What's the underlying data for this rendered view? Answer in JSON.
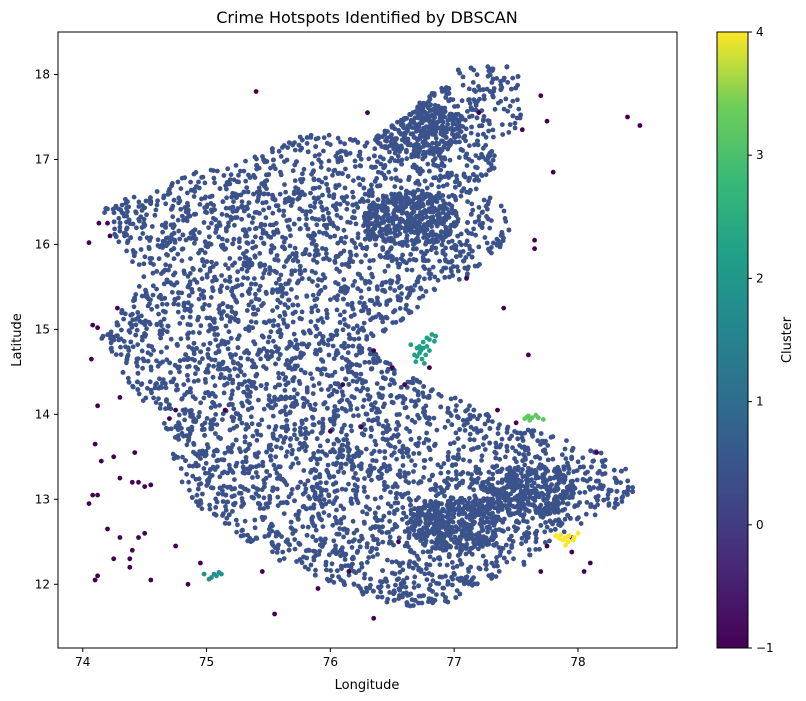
{
  "chart_data": {
    "type": "scatter",
    "title": "Crime Hotspots Identified by DBSCAN",
    "xlabel": "Longitude",
    "ylabel": "Latitude",
    "xlim": [
      73.8,
      78.8
    ],
    "ylim": [
      11.25,
      18.5
    ],
    "xticks": [
      74,
      75,
      76,
      77,
      78
    ],
    "yticks": [
      12,
      13,
      14,
      15,
      16,
      17,
      18
    ],
    "grid": false,
    "colorbar": {
      "label": "Cluster",
      "range": [
        -1,
        4
      ],
      "ticks": [
        -1,
        0,
        1,
        2,
        3,
        4
      ],
      "colormap": "viridis"
    },
    "clusters": [
      {
        "cluster": 0,
        "color": "#3b528b",
        "region_outline": [
          [
            74.2,
            16.5
          ],
          [
            74.55,
            16.6
          ],
          [
            74.9,
            16.85
          ],
          [
            75.2,
            16.95
          ],
          [
            75.6,
            17.2
          ],
          [
            75.95,
            17.35
          ],
          [
            76.3,
            17.2
          ],
          [
            76.6,
            17.5
          ],
          [
            76.85,
            17.85
          ],
          [
            77.1,
            18.15
          ],
          [
            77.45,
            18.1
          ],
          [
            77.6,
            17.85
          ],
          [
            77.55,
            17.4
          ],
          [
            77.3,
            17.2
          ],
          [
            77.4,
            16.95
          ],
          [
            77.2,
            16.7
          ],
          [
            77.5,
            16.3
          ],
          [
            77.35,
            15.9
          ],
          [
            77.1,
            15.6
          ],
          [
            76.9,
            15.5
          ],
          [
            76.5,
            15.0
          ],
          [
            76.25,
            14.85
          ],
          [
            76.6,
            14.5
          ],
          [
            77.0,
            14.2
          ],
          [
            77.4,
            13.9
          ],
          [
            77.8,
            13.75
          ],
          [
            78.2,
            13.55
          ],
          [
            78.45,
            13.3
          ],
          [
            78.5,
            13.05
          ],
          [
            78.1,
            12.75
          ],
          [
            77.8,
            12.55
          ],
          [
            77.55,
            12.2
          ],
          [
            77.2,
            12.0
          ],
          [
            77.0,
            11.8
          ],
          [
            76.6,
            11.7
          ],
          [
            76.2,
            11.9
          ],
          [
            75.8,
            12.15
          ],
          [
            75.4,
            12.4
          ],
          [
            75.1,
            12.75
          ],
          [
            74.85,
            13.0
          ],
          [
            74.75,
            13.4
          ],
          [
            74.65,
            13.9
          ],
          [
            74.4,
            14.3
          ],
          [
            74.25,
            14.65
          ],
          [
            74.15,
            14.9
          ],
          [
            74.35,
            15.3
          ],
          [
            74.5,
            15.6
          ],
          [
            74.3,
            16.0
          ],
          [
            74.15,
            16.3
          ]
        ],
        "dense_centers": [
          [
            77.6,
            13.1
          ],
          [
            76.7,
            17.35
          ],
          [
            76.65,
            16.3
          ],
          [
            77.0,
            12.7
          ]
        ]
      },
      {
        "cluster": -1,
        "color": "#440154",
        "points": [
          [
            74.05,
            16.02
          ],
          [
            74.13,
            16.25
          ],
          [
            74.2,
            16.25
          ],
          [
            74.22,
            16.1
          ],
          [
            74.28,
            15.25
          ],
          [
            74.08,
            15.05
          ],
          [
            74.12,
            15.02
          ],
          [
            74.07,
            14.65
          ],
          [
            74.12,
            14.1
          ],
          [
            74.3,
            14.2
          ],
          [
            74.25,
            13.5
          ],
          [
            74.1,
            13.65
          ],
          [
            74.15,
            13.45
          ],
          [
            74.3,
            13.25
          ],
          [
            74.4,
            13.2
          ],
          [
            74.45,
            13.2
          ],
          [
            74.5,
            13.15
          ],
          [
            74.55,
            13.17
          ],
          [
            74.42,
            13.55
          ],
          [
            74.08,
            13.05
          ],
          [
            74.12,
            13.05
          ],
          [
            74.05,
            12.95
          ],
          [
            74.2,
            12.65
          ],
          [
            74.3,
            12.55
          ],
          [
            74.45,
            12.55
          ],
          [
            74.5,
            12.6
          ],
          [
            74.4,
            12.4
          ],
          [
            74.38,
            12.3
          ],
          [
            74.25,
            12.3
          ],
          [
            74.38,
            12.2
          ],
          [
            74.12,
            12.1
          ],
          [
            74.1,
            12.05
          ],
          [
            74.55,
            12.05
          ],
          [
            74.85,
            12.0
          ],
          [
            74.75,
            12.45
          ],
          [
            74.95,
            12.25
          ],
          [
            74.75,
            14.05
          ],
          [
            74.7,
            13.95
          ],
          [
            75.4,
            17.8
          ],
          [
            76.3,
            17.55
          ],
          [
            77.2,
            17.55
          ],
          [
            77.7,
            17.75
          ],
          [
            77.75,
            17.45
          ],
          [
            77.55,
            17.35
          ],
          [
            77.8,
            16.85
          ],
          [
            78.4,
            17.5
          ],
          [
            78.5,
            17.4
          ],
          [
            77.1,
            15.6
          ],
          [
            77.4,
            15.25
          ],
          [
            77.6,
            14.7
          ],
          [
            76.5,
            14.55
          ],
          [
            76.6,
            14.35
          ],
          [
            76.1,
            14.35
          ],
          [
            76.25,
            13.85
          ],
          [
            77.35,
            14.05
          ],
          [
            77.5,
            13.9
          ],
          [
            78.15,
            13.55
          ],
          [
            78.1,
            12.25
          ],
          [
            78.05,
            12.15
          ],
          [
            77.75,
            12.45
          ],
          [
            77.95,
            12.38
          ],
          [
            77.95,
            12.55
          ],
          [
            76.15,
            12.15
          ],
          [
            75.45,
            12.15
          ],
          [
            76.35,
            11.6
          ],
          [
            77.7,
            12.15
          ],
          [
            75.9,
            11.95
          ],
          [
            76.35,
            14.75
          ],
          [
            75.15,
            14.05
          ],
          [
            76.0,
            13.8
          ],
          [
            76.8,
            14.55
          ],
          [
            77.65,
            16.05
          ],
          [
            77.65,
            15.95
          ],
          [
            76.55,
            12.5
          ],
          [
            75.55,
            11.65
          ]
        ]
      },
      {
        "cluster": 1,
        "color": "#21918c",
        "points": [
          [
            74.98,
            12.12
          ],
          [
            75.02,
            12.06
          ],
          [
            75.06,
            12.12
          ],
          [
            75.1,
            12.14
          ],
          [
            75.08,
            12.1
          ],
          [
            75.12,
            12.12
          ],
          [
            75.04,
            12.08
          ]
        ]
      },
      {
        "cluster": 2,
        "color": "#1fa187",
        "points": [
          [
            76.65,
            14.82
          ],
          [
            76.7,
            14.78
          ],
          [
            76.72,
            14.72
          ],
          [
            76.75,
            14.85
          ],
          [
            76.78,
            14.9
          ],
          [
            76.8,
            14.88
          ],
          [
            76.82,
            14.94
          ],
          [
            76.7,
            14.68
          ],
          [
            76.74,
            14.65
          ],
          [
            76.76,
            14.6
          ],
          [
            76.8,
            14.75
          ],
          [
            76.78,
            14.8
          ],
          [
            76.72,
            14.8
          ],
          [
            76.84,
            14.86
          ],
          [
            76.68,
            14.7
          ],
          [
            76.73,
            14.75
          ],
          [
            76.77,
            14.7
          ],
          [
            76.85,
            14.92
          ],
          [
            76.69,
            14.62
          ],
          [
            76.75,
            14.78
          ]
        ]
      },
      {
        "cluster": 3,
        "color": "#5ec962",
        "points": [
          [
            77.57,
            13.95
          ],
          [
            77.6,
            13.98
          ],
          [
            77.63,
            13.96
          ],
          [
            77.66,
            13.99
          ],
          [
            77.61,
            13.93
          ],
          [
            77.68,
            13.96
          ],
          [
            77.72,
            13.94
          ],
          [
            77.59,
            13.97
          ]
        ]
      },
      {
        "cluster": 4,
        "color": "#fde725",
        "points": [
          [
            77.82,
            12.57
          ],
          [
            77.86,
            12.58
          ],
          [
            77.9,
            12.55
          ],
          [
            77.93,
            12.57
          ],
          [
            77.96,
            12.52
          ],
          [
            77.88,
            12.52
          ],
          [
            77.85,
            12.54
          ],
          [
            77.92,
            12.5
          ],
          [
            77.97,
            12.55
          ],
          [
            78.0,
            12.6
          ],
          [
            77.9,
            12.46
          ]
        ]
      }
    ]
  }
}
